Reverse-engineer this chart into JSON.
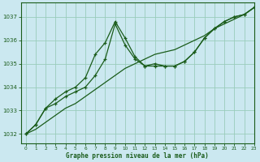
{
  "title": "Graphe pression niveau de la mer (hPa)",
  "bg_color": "#cbe8f0",
  "grid_color": "#99ccbb",
  "line_color": "#1a5c1a",
  "xlim": [
    -0.5,
    23
  ],
  "ylim": [
    1031.6,
    1037.6
  ],
  "yticks": [
    1032,
    1033,
    1034,
    1035,
    1036,
    1037
  ],
  "xticks": [
    0,
    1,
    2,
    3,
    4,
    5,
    6,
    7,
    8,
    9,
    10,
    11,
    12,
    13,
    14,
    15,
    16,
    17,
    18,
    19,
    20,
    21,
    22,
    23
  ],
  "series1": {
    "x": [
      0,
      1,
      2,
      3,
      4,
      5,
      6,
      7,
      8,
      9,
      10,
      11,
      12,
      13,
      14,
      15,
      16,
      17,
      18,
      19,
      20,
      21,
      22,
      23
    ],
    "y": [
      1032.0,
      1032.2,
      1032.5,
      1032.8,
      1033.1,
      1033.3,
      1033.6,
      1033.9,
      1034.2,
      1034.5,
      1034.8,
      1035.0,
      1035.2,
      1035.4,
      1035.5,
      1035.6,
      1035.8,
      1036.0,
      1036.2,
      1036.5,
      1036.7,
      1036.9,
      1037.1,
      1037.4
    ]
  },
  "series2": {
    "x": [
      0,
      1,
      2,
      3,
      4,
      5,
      6,
      7,
      8,
      9,
      10,
      11,
      12,
      13,
      14,
      15,
      16,
      17,
      18,
      19,
      20,
      21,
      22,
      23
    ],
    "y": [
      1032.0,
      1032.4,
      1033.1,
      1033.5,
      1033.8,
      1034.0,
      1034.4,
      1035.4,
      1035.9,
      1036.8,
      1036.1,
      1035.3,
      1034.9,
      1035.0,
      1034.9,
      1034.9,
      1035.1,
      1035.5,
      1036.1,
      1036.5,
      1036.8,
      1037.0,
      1037.1,
      1037.4
    ]
  },
  "series3": {
    "x": [
      0,
      1,
      2,
      3,
      4,
      5,
      6,
      7,
      8,
      9,
      10,
      11,
      12,
      13,
      14,
      15,
      16,
      17,
      18,
      19,
      20,
      21,
      22,
      23
    ],
    "y": [
      1032.0,
      1032.4,
      1033.1,
      1033.3,
      1033.6,
      1033.8,
      1034.0,
      1034.5,
      1035.2,
      1036.7,
      1035.8,
      1035.2,
      1034.9,
      1034.9,
      1034.9,
      1034.9,
      1035.1,
      1035.5,
      1036.1,
      1036.5,
      1036.8,
      1037.0,
      1037.1,
      1037.4
    ]
  }
}
